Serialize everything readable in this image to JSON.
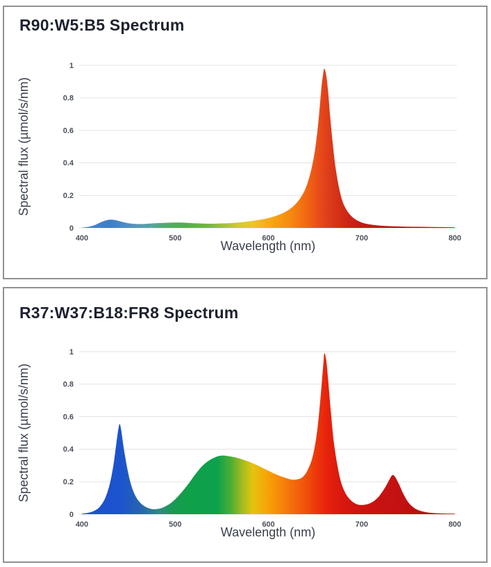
{
  "page": {
    "background": "#ffffff",
    "panel_border_color": "#8f9194",
    "grid_color": "#e3e3e3",
    "tick_color": "#4a505a",
    "title_color": "#1c222e"
  },
  "chart_data": [
    {
      "type": "area",
      "title": "R90:W5:B5 Spectrum",
      "xlabel": "Wavelength (nm)",
      "ylabel": "Spectral flux (µmol/s/nm)",
      "xlim": [
        400,
        800
      ],
      "ylim": [
        0,
        1
      ],
      "x_ticks": [
        400,
        500,
        600,
        700,
        800
      ],
      "y_ticks": [
        0,
        0.2,
        0.4,
        0.6,
        0.8,
        1
      ],
      "grid": true,
      "legend": false,
      "grid_color": "#e3e3e3",
      "peaks": [
        {
          "wavelength_nm": 433,
          "value": 0.05,
          "band": "blue"
        },
        {
          "wavelength_nm": 660,
          "value": 0.98,
          "band": "red"
        }
      ],
      "points": [
        [
          400,
          0.002
        ],
        [
          406,
          0.006
        ],
        [
          413,
          0.016
        ],
        [
          420,
          0.034
        ],
        [
          427,
          0.048
        ],
        [
          433,
          0.05
        ],
        [
          440,
          0.042
        ],
        [
          448,
          0.031
        ],
        [
          456,
          0.025
        ],
        [
          464,
          0.024
        ],
        [
          473,
          0.027
        ],
        [
          483,
          0.03
        ],
        [
          493,
          0.032
        ],
        [
          503,
          0.033
        ],
        [
          513,
          0.031
        ],
        [
          523,
          0.028
        ],
        [
          533,
          0.026
        ],
        [
          543,
          0.026
        ],
        [
          553,
          0.028
        ],
        [
          563,
          0.031
        ],
        [
          573,
          0.036
        ],
        [
          583,
          0.043
        ],
        [
          593,
          0.052
        ],
        [
          603,
          0.065
        ],
        [
          612,
          0.082
        ],
        [
          620,
          0.105
        ],
        [
          628,
          0.14
        ],
        [
          635,
          0.19
        ],
        [
          641,
          0.26
        ],
        [
          646,
          0.36
        ],
        [
          650,
          0.48
        ],
        [
          653,
          0.62
        ],
        [
          655,
          0.74
        ],
        [
          657,
          0.87
        ],
        [
          659,
          0.96
        ],
        [
          660,
          0.98
        ],
        [
          662,
          0.94
        ],
        [
          664,
          0.84
        ],
        [
          666,
          0.7
        ],
        [
          669,
          0.52
        ],
        [
          672,
          0.37
        ],
        [
          676,
          0.24
        ],
        [
          680,
          0.155
        ],
        [
          685,
          0.1
        ],
        [
          691,
          0.062
        ],
        [
          698,
          0.038
        ],
        [
          706,
          0.024
        ],
        [
          716,
          0.016
        ],
        [
          728,
          0.011
        ],
        [
          745,
          0.008
        ],
        [
          770,
          0.006
        ],
        [
          800,
          0.004
        ]
      ],
      "fill_gradient": [
        [
          400,
          "#4e86c6"
        ],
        [
          430,
          "#3d7ec6"
        ],
        [
          455,
          "#5593be"
        ],
        [
          475,
          "#5aa4a0"
        ],
        [
          492,
          "#52ab62"
        ],
        [
          510,
          "#55ac4e"
        ],
        [
          532,
          "#6cb446"
        ],
        [
          552,
          "#a2c23a"
        ],
        [
          568,
          "#d2ca2e"
        ],
        [
          582,
          "#ecc62a"
        ],
        [
          596,
          "#f5b01c"
        ],
        [
          610,
          "#f79d12"
        ],
        [
          624,
          "#f68810"
        ],
        [
          638,
          "#f26d10"
        ],
        [
          650,
          "#ec5517"
        ],
        [
          660,
          "#e2431a"
        ],
        [
          672,
          "#d63418"
        ],
        [
          686,
          "#cc2414"
        ],
        [
          702,
          "#c41b13"
        ],
        [
          735,
          "#bc1512"
        ],
        [
          800,
          "#b21111"
        ]
      ]
    },
    {
      "type": "area",
      "title": "R37:W37:B18:FR8 Spectrum",
      "xlabel": "Wavelength (nm)",
      "ylabel": "Spectral flux (µmol/s/nm)",
      "xlim": [
        400,
        800
      ],
      "ylim": [
        0,
        1
      ],
      "x_ticks": [
        400,
        500,
        600,
        700,
        800
      ],
      "y_ticks": [
        0,
        0.2,
        0.4,
        0.6,
        0.8,
        1
      ],
      "grid": true,
      "legend": false,
      "grid_color": "#e3e3e3",
      "peaks": [
        {
          "wavelength_nm": 440,
          "value": 0.55,
          "band": "blue"
        },
        {
          "wavelength_nm": 549,
          "value": 0.36,
          "band": "green-white"
        },
        {
          "wavelength_nm": 660,
          "value": 0.99,
          "band": "red"
        },
        {
          "wavelength_nm": 733,
          "value": 0.24,
          "band": "far-red"
        }
      ],
      "points": [
        [
          400,
          0.003
        ],
        [
          407,
          0.009
        ],
        [
          413,
          0.02
        ],
        [
          419,
          0.045
        ],
        [
          425,
          0.1
        ],
        [
          430,
          0.19
        ],
        [
          434,
          0.31
        ],
        [
          437,
          0.44
        ],
        [
          440,
          0.55
        ],
        [
          442,
          0.52
        ],
        [
          445,
          0.4
        ],
        [
          449,
          0.27
        ],
        [
          453,
          0.175
        ],
        [
          458,
          0.105
        ],
        [
          464,
          0.062
        ],
        [
          470,
          0.04
        ],
        [
          476,
          0.031
        ],
        [
          482,
          0.033
        ],
        [
          488,
          0.044
        ],
        [
          494,
          0.063
        ],
        [
          500,
          0.092
        ],
        [
          507,
          0.135
        ],
        [
          514,
          0.185
        ],
        [
          521,
          0.24
        ],
        [
          528,
          0.29
        ],
        [
          535,
          0.325
        ],
        [
          542,
          0.348
        ],
        [
          549,
          0.36
        ],
        [
          556,
          0.358
        ],
        [
          564,
          0.35
        ],
        [
          572,
          0.337
        ],
        [
          580,
          0.321
        ],
        [
          588,
          0.301
        ],
        [
          596,
          0.278
        ],
        [
          604,
          0.256
        ],
        [
          612,
          0.236
        ],
        [
          619,
          0.222
        ],
        [
          625,
          0.213
        ],
        [
          631,
          0.214
        ],
        [
          637,
          0.23
        ],
        [
          642,
          0.27
        ],
        [
          647,
          0.345
        ],
        [
          651,
          0.46
        ],
        [
          654,
          0.6
        ],
        [
          657,
          0.79
        ],
        [
          659,
          0.93
        ],
        [
          660,
          0.99
        ],
        [
          662,
          0.95
        ],
        [
          664,
          0.83
        ],
        [
          667,
          0.63
        ],
        [
          670,
          0.45
        ],
        [
          674,
          0.3
        ],
        [
          678,
          0.195
        ],
        [
          683,
          0.125
        ],
        [
          689,
          0.082
        ],
        [
          695,
          0.061
        ],
        [
          701,
          0.057
        ],
        [
          707,
          0.063
        ],
        [
          713,
          0.08
        ],
        [
          719,
          0.113
        ],
        [
          725,
          0.163
        ],
        [
          730,
          0.215
        ],
        [
          733,
          0.24
        ],
        [
          736,
          0.228
        ],
        [
          740,
          0.185
        ],
        [
          745,
          0.122
        ],
        [
          750,
          0.073
        ],
        [
          756,
          0.04
        ],
        [
          763,
          0.02
        ],
        [
          772,
          0.01
        ],
        [
          783,
          0.005
        ],
        [
          800,
          0.003
        ]
      ],
      "fill_gradient": [
        [
          400,
          "#2150cc"
        ],
        [
          440,
          "#1b53ce"
        ],
        [
          462,
          "#2763b2"
        ],
        [
          482,
          "#2f8a84"
        ],
        [
          498,
          "#199a52"
        ],
        [
          515,
          "#0fa048"
        ],
        [
          545,
          "#0ca14d"
        ],
        [
          560,
          "#4fae34"
        ],
        [
          572,
          "#a4bb1e"
        ],
        [
          583,
          "#e4c310"
        ],
        [
          596,
          "#f6a908"
        ],
        [
          608,
          "#f79108"
        ],
        [
          622,
          "#f4740c"
        ],
        [
          638,
          "#f05509"
        ],
        [
          652,
          "#ec360b"
        ],
        [
          663,
          "#e6220c"
        ],
        [
          678,
          "#da180d"
        ],
        [
          695,
          "#cf140e"
        ],
        [
          715,
          "#c81212"
        ],
        [
          737,
          "#c41111"
        ],
        [
          765,
          "#b80f0f"
        ],
        [
          800,
          "#ad0d0d"
        ]
      ]
    }
  ]
}
